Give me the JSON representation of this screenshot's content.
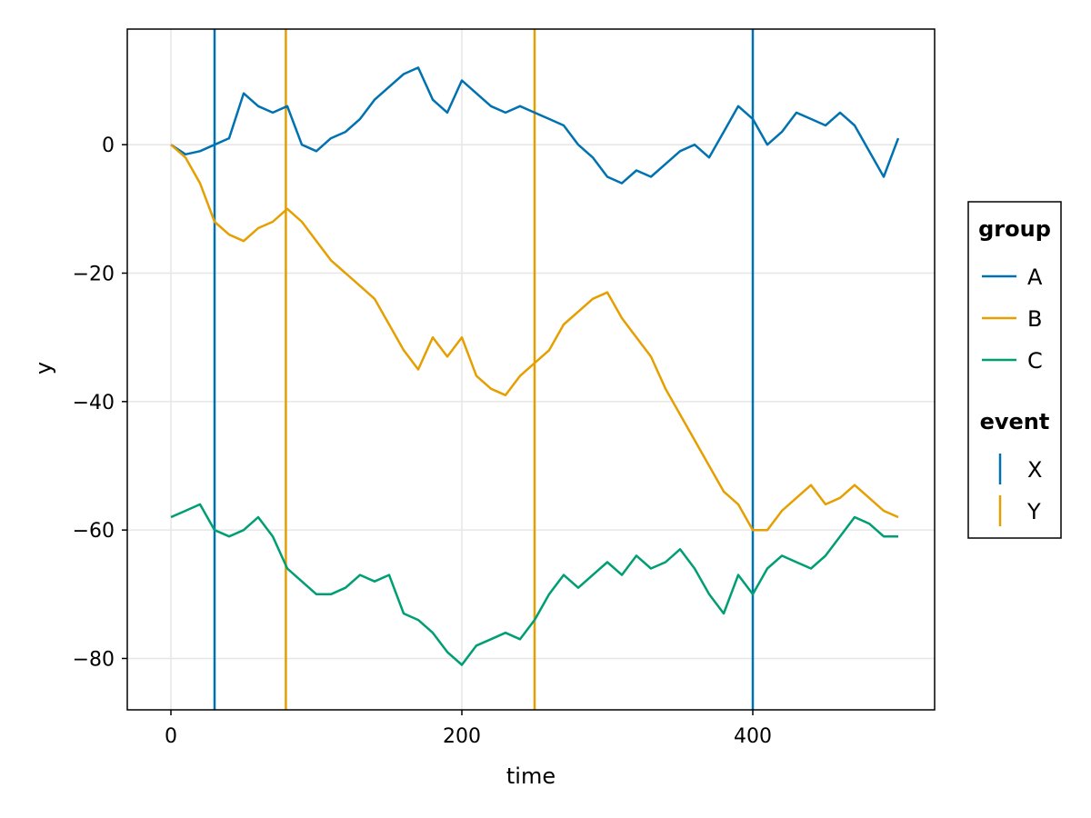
{
  "chart_data": {
    "type": "line",
    "title": "",
    "xlabel": "time",
    "ylabel": "y",
    "xlim": [
      -30,
      525
    ],
    "ylim": [
      -88,
      18
    ],
    "xticks": [
      0,
      200,
      400
    ],
    "yticks": [
      0,
      -20,
      -40,
      -60,
      -80
    ],
    "grid": true,
    "legend_placement": "right",
    "legend": {
      "group_title": "group",
      "event_title": "event"
    },
    "series": [
      {
        "name": "A",
        "color": "#0072b2",
        "x": [
          0,
          10,
          20,
          30,
          40,
          50,
          60,
          70,
          80,
          90,
          100,
          110,
          120,
          130,
          140,
          150,
          160,
          170,
          180,
          190,
          200,
          210,
          220,
          230,
          240,
          250,
          260,
          270,
          280,
          290,
          300,
          310,
          320,
          330,
          340,
          350,
          360,
          370,
          380,
          390,
          400,
          410,
          420,
          430,
          440,
          450,
          460,
          470,
          480,
          490,
          500
        ],
        "values": [
          0,
          -1.5,
          -1,
          0,
          1,
          8,
          6,
          5,
          6,
          0,
          -1,
          1,
          2,
          4,
          7,
          9,
          11,
          12,
          7,
          5,
          10,
          8,
          6,
          5,
          6,
          5,
          4,
          3,
          0,
          -2,
          -5,
          -6,
          -4,
          -5,
          -3,
          -1,
          0,
          -2,
          2,
          6,
          4,
          0,
          2,
          5,
          4,
          3,
          5,
          3,
          -1,
          -5,
          1
        ]
      },
      {
        "name": "B",
        "color": "#e69f00",
        "x": [
          0,
          10,
          20,
          30,
          40,
          50,
          60,
          70,
          80,
          90,
          100,
          110,
          120,
          130,
          140,
          150,
          160,
          170,
          180,
          190,
          200,
          210,
          220,
          230,
          240,
          250,
          260,
          270,
          280,
          290,
          300,
          310,
          320,
          330,
          340,
          350,
          360,
          370,
          380,
          390,
          400,
          410,
          420,
          430,
          440,
          450,
          460,
          470,
          480,
          490,
          500
        ],
        "values": [
          0,
          -2,
          -6,
          -12,
          -14,
          -15,
          -13,
          -12,
          -10,
          -12,
          -15,
          -18,
          -20,
          -22,
          -24,
          -28,
          -32,
          -35,
          -30,
          -33,
          -30,
          -36,
          -38,
          -39,
          -36,
          -34,
          -32,
          -28,
          -26,
          -24,
          -23,
          -27,
          -30,
          -33,
          -38,
          -42,
          -46,
          -50,
          -54,
          -56,
          -60,
          -60,
          -57,
          -55,
          -53,
          -56,
          -55,
          -53,
          -55,
          -57,
          -58
        ]
      },
      {
        "name": "C",
        "color": "#009e73",
        "x": [
          0,
          10,
          20,
          30,
          40,
          50,
          60,
          70,
          80,
          90,
          100,
          110,
          120,
          130,
          140,
          150,
          160,
          170,
          180,
          190,
          200,
          210,
          220,
          230,
          240,
          250,
          260,
          270,
          280,
          290,
          300,
          310,
          320,
          330,
          340,
          350,
          360,
          370,
          380,
          390,
          400,
          410,
          420,
          430,
          440,
          450,
          460,
          470,
          480,
          490,
          500
        ],
        "values": [
          -58,
          -57,
          -56,
          -60,
          -61,
          -60,
          -58,
          -61,
          -66,
          -68,
          -70,
          -70,
          -69,
          -67,
          -68,
          -67,
          -73,
          -74,
          -76,
          -79,
          -81,
          -78,
          -77,
          -76,
          -77,
          -74,
          -70,
          -67,
          -69,
          -67,
          -65,
          -67,
          -64,
          -66,
          -65,
          -63,
          -66,
          -70,
          -73,
          -67,
          -70,
          -66,
          -64,
          -65,
          -66,
          -64,
          -61,
          -58,
          -59,
          -61,
          -61
        ]
      }
    ],
    "events": [
      {
        "name": "X",
        "color": "#0072b2",
        "x": [
          30,
          400
        ]
      },
      {
        "name": "Y",
        "color": "#e69f00",
        "x": [
          79,
          250
        ]
      }
    ]
  }
}
